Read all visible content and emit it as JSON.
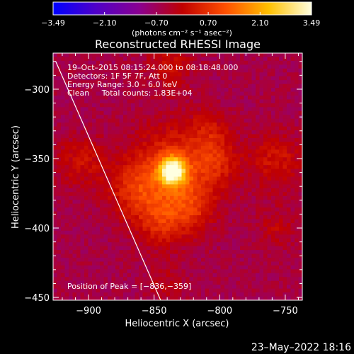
{
  "chart_data": {
    "type": "heatmap",
    "title": "Reconstructed RHESSI Image",
    "xlabel": "Heliocentric X (arcsec)",
    "ylabel": "Heliocentric Y (arcsec)",
    "xlim": [
      -927,
      -737
    ],
    "ylim": [
      -452,
      -274
    ],
    "x_ticks": [
      {
        "value": -900,
        "label": "−900"
      },
      {
        "value": -850,
        "label": "−850"
      },
      {
        "value": -800,
        "label": "−800"
      },
      {
        "value": -750,
        "label": "−750"
      }
    ],
    "y_ticks": [
      {
        "value": -300,
        "label": "−300"
      },
      {
        "value": -350,
        "label": "−350"
      },
      {
        "value": -400,
        "label": "−400"
      },
      {
        "value": -450,
        "label": "−450"
      }
    ],
    "colorbar": {
      "range": [
        -3.49,
        3.49
      ],
      "ticks": [
        {
          "value": -3.49,
          "label": "−3.49"
        },
        {
          "value": -2.1,
          "label": "−2.10"
        },
        {
          "value": -0.7,
          "label": "−0.70"
        },
        {
          "value": 0.7,
          "label": "0.70"
        },
        {
          "value": 2.1,
          "label": "2.10"
        },
        {
          "value": 3.49,
          "label": "3.49"
        }
      ],
      "units": "(photons cm⁻² s⁻¹ asec⁻²)",
      "colors": [
        "#0000ff",
        "#5000c8",
        "#8a0090",
        "#c00000",
        "#ff5000",
        "#ffc000",
        "#ffffe0"
      ]
    },
    "annotations": [
      "19–Oct–2015 08:15:24.000 to 08:18:48.000",
      "Detectors: 1F 5F 7F, Att 0",
      "Energy Range: 3.0 – 6.0 keV",
      "Clean     Total counts: 1.83E+04"
    ],
    "peak_label": "Position of Peak = [−836,−359]",
    "peak": [
      -836,
      -359
    ],
    "peak_value": 3.49,
    "sources": [
      {
        "x": -836,
        "y": -359,
        "amp": 3.49,
        "sigma": 7
      },
      {
        "x": -836,
        "y": -360,
        "amp": 1.4,
        "sigma": 22
      },
      {
        "x": -865,
        "y": -372,
        "amp": 0.9,
        "sigma": 14
      },
      {
        "x": -845,
        "y": -395,
        "amp": 0.9,
        "sigma": 13
      },
      {
        "x": -822,
        "y": -386,
        "amp": 0.8,
        "sigma": 12
      },
      {
        "x": -803,
        "y": -352,
        "amp": 0.8,
        "sigma": 12
      },
      {
        "x": -808,
        "y": -330,
        "amp": 0.6,
        "sigma": 11
      },
      {
        "x": -905,
        "y": -352,
        "amp": 0.7,
        "sigma": 13
      },
      {
        "x": -757,
        "y": -352,
        "amp": 0.8,
        "sigma": 14
      },
      {
        "x": -757,
        "y": -400,
        "amp": 0.5,
        "sigma": 10
      },
      {
        "x": -838,
        "y": -283,
        "amp": 0.65,
        "sigma": 12
      },
      {
        "x": -840,
        "y": -440,
        "amp": 0.4,
        "sigma": 10
      }
    ],
    "background_level": -0.55,
    "limb_line": [
      [
        -925,
        -280
      ],
      [
        -845,
        -452
      ]
    ],
    "grid": false
  },
  "footer": {
    "timestamp": "23–May–2022 18:16"
  }
}
